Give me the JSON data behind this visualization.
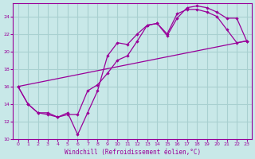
{
  "xlabel": "Windchill (Refroidissement éolien,°C)",
  "bg_color": "#c8e8e8",
  "grid_color": "#a8d0d0",
  "line_color": "#990099",
  "xlim": [
    -0.5,
    23.5
  ],
  "ylim": [
    10,
    25.5
  ],
  "yticks": [
    10,
    12,
    14,
    16,
    18,
    20,
    22,
    24
  ],
  "xticks": [
    0,
    1,
    2,
    3,
    4,
    5,
    6,
    7,
    8,
    9,
    10,
    11,
    12,
    13,
    14,
    15,
    16,
    17,
    18,
    19,
    20,
    21,
    22,
    23
  ],
  "series1_x": [
    0,
    1,
    2,
    3,
    4,
    5,
    6,
    7,
    8,
    9,
    10,
    11,
    12,
    13,
    14,
    15,
    16,
    17,
    18,
    19,
    20,
    21,
    22,
    23
  ],
  "series1_y": [
    16,
    14,
    13,
    13,
    12.5,
    13,
    10.5,
    13,
    15.5,
    19.5,
    21,
    20.8,
    22,
    23,
    23.2,
    22,
    24.3,
    24.8,
    24.8,
    24.5,
    24,
    22.5,
    21,
    21.2
  ],
  "series2_x": [
    0,
    1,
    2,
    3,
    4,
    5,
    6,
    7,
    8,
    9,
    10,
    11,
    12,
    13,
    14,
    15,
    16,
    17,
    18,
    19,
    20,
    21,
    22,
    23
  ],
  "series2_y": [
    16,
    14,
    13,
    12.8,
    12.5,
    12.8,
    12.8,
    15.5,
    16.2,
    17.5,
    19,
    19.5,
    21.2,
    23.0,
    23.2,
    21.8,
    23.8,
    25.0,
    25.2,
    25.0,
    24.5,
    23.8,
    23.8,
    21.2
  ],
  "series3_x": [
    0,
    23
  ],
  "series3_y": [
    16,
    21.2
  ]
}
